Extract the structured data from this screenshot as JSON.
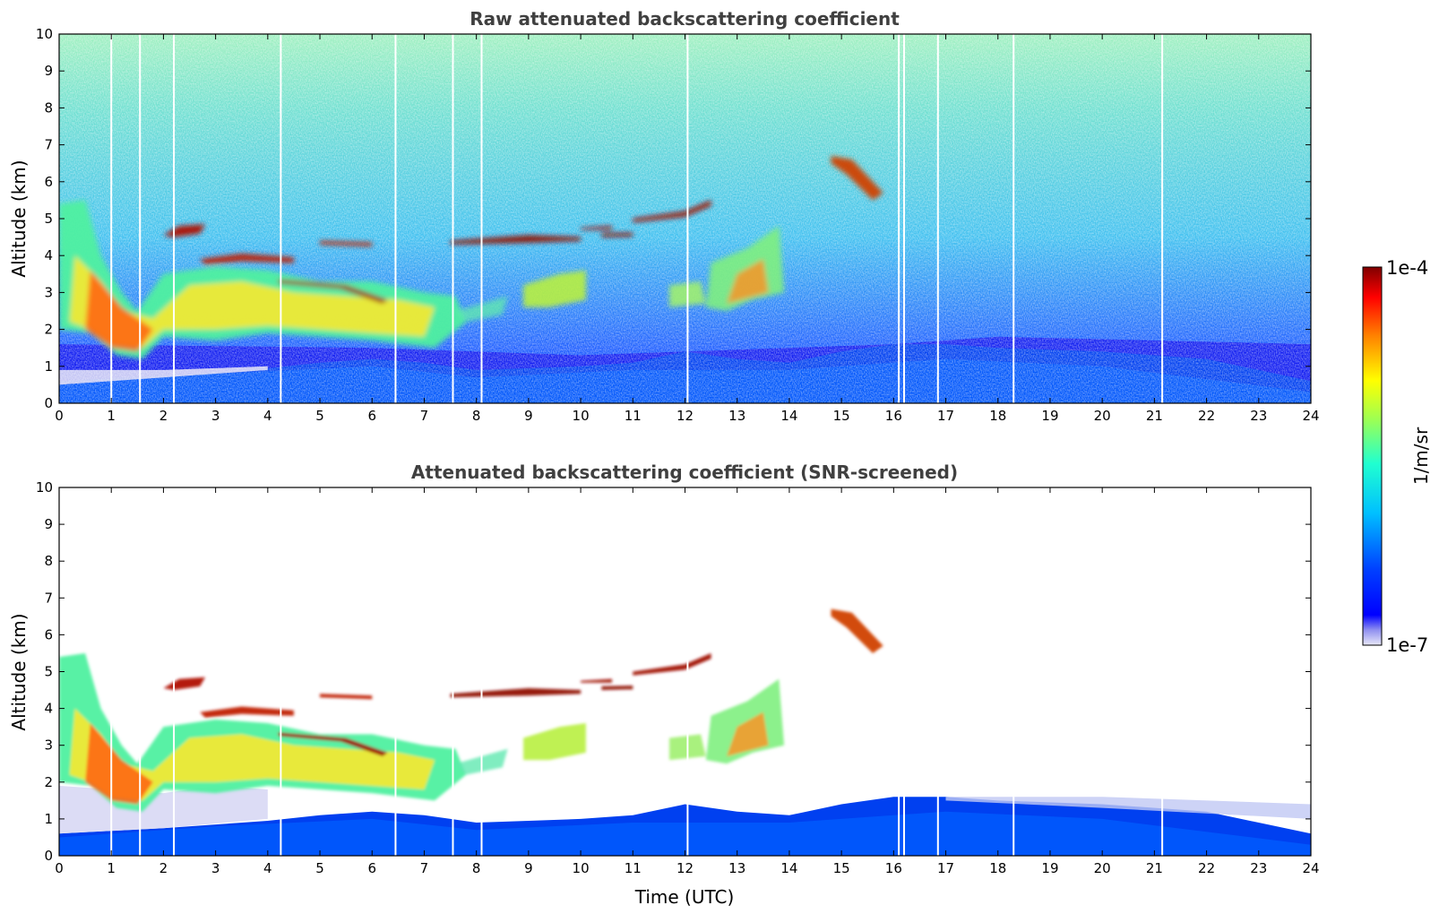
{
  "chart_data": [
    {
      "type": "heatmap",
      "title": "Raw attenuated backscattering coefficient",
      "xlabel": "",
      "ylabel": "Altitude (km)",
      "xlim": [
        0,
        24
      ],
      "ylim": [
        0,
        10
      ],
      "xticks": [
        "0",
        "1",
        "2",
        "3",
        "4",
        "5",
        "6",
        "7",
        "8",
        "9",
        "10",
        "11",
        "12",
        "13",
        "14",
        "15",
        "16",
        "17",
        "18",
        "19",
        "20",
        "21",
        "22",
        "23",
        "24"
      ],
      "yticks": [
        "0",
        "1",
        "2",
        "3",
        "4",
        "5",
        "6",
        "7",
        "8",
        "9",
        "10"
      ],
      "screened": false,
      "features": [
        {
          "kind": "boundary-layer",
          "x": [
            0,
            24
          ]
        },
        {
          "kind": "aerosol-layer",
          "x": [
            0,
            7.6
          ],
          "y": [
            1.2,
            5.5
          ]
        },
        {
          "kind": "cloud-layer",
          "x": [
            2,
            12.5
          ],
          "y": [
            2.3,
            5.1
          ]
        },
        {
          "kind": "cloud-layer",
          "x": [
            14.8,
            15.8
          ],
          "y": [
            5.5,
            6.8
          ]
        },
        {
          "kind": "aerosol-layer",
          "x": [
            12,
            13.9
          ],
          "y": [
            2.5,
            4.8
          ]
        }
      ],
      "data_gaps_hours": [
        1.0,
        1.55,
        2.2,
        4.25,
        6.45,
        7.55,
        8.1,
        12.05,
        16.1,
        16.2,
        16.85,
        18.3,
        21.15
      ]
    },
    {
      "type": "heatmap",
      "title": "Attenuated backscattering coefficient (SNR-screened)",
      "xlabel": "Time (UTC)",
      "ylabel": "Altitude (km)",
      "xlim": [
        0,
        24
      ],
      "ylim": [
        0,
        10
      ],
      "xticks": [
        "0",
        "1",
        "2",
        "3",
        "4",
        "5",
        "6",
        "7",
        "8",
        "9",
        "10",
        "11",
        "12",
        "13",
        "14",
        "15",
        "16",
        "17",
        "18",
        "19",
        "20",
        "21",
        "22",
        "23",
        "24"
      ],
      "yticks": [
        "0",
        "1",
        "2",
        "3",
        "4",
        "5",
        "6",
        "7",
        "8",
        "9",
        "10"
      ],
      "screened": true,
      "data_gaps_hours": [
        1.0,
        1.55,
        2.2,
        4.25,
        6.45,
        7.55,
        8.1,
        12.05,
        16.1,
        16.2,
        16.85,
        18.3,
        21.15
      ]
    }
  ],
  "colorbar": {
    "label": "1/m/sr",
    "max_label": "1e-4",
    "min_label": "1e-7",
    "scale": "log",
    "range": [
      1e-07,
      0.0001
    ],
    "colormap": "jet"
  }
}
